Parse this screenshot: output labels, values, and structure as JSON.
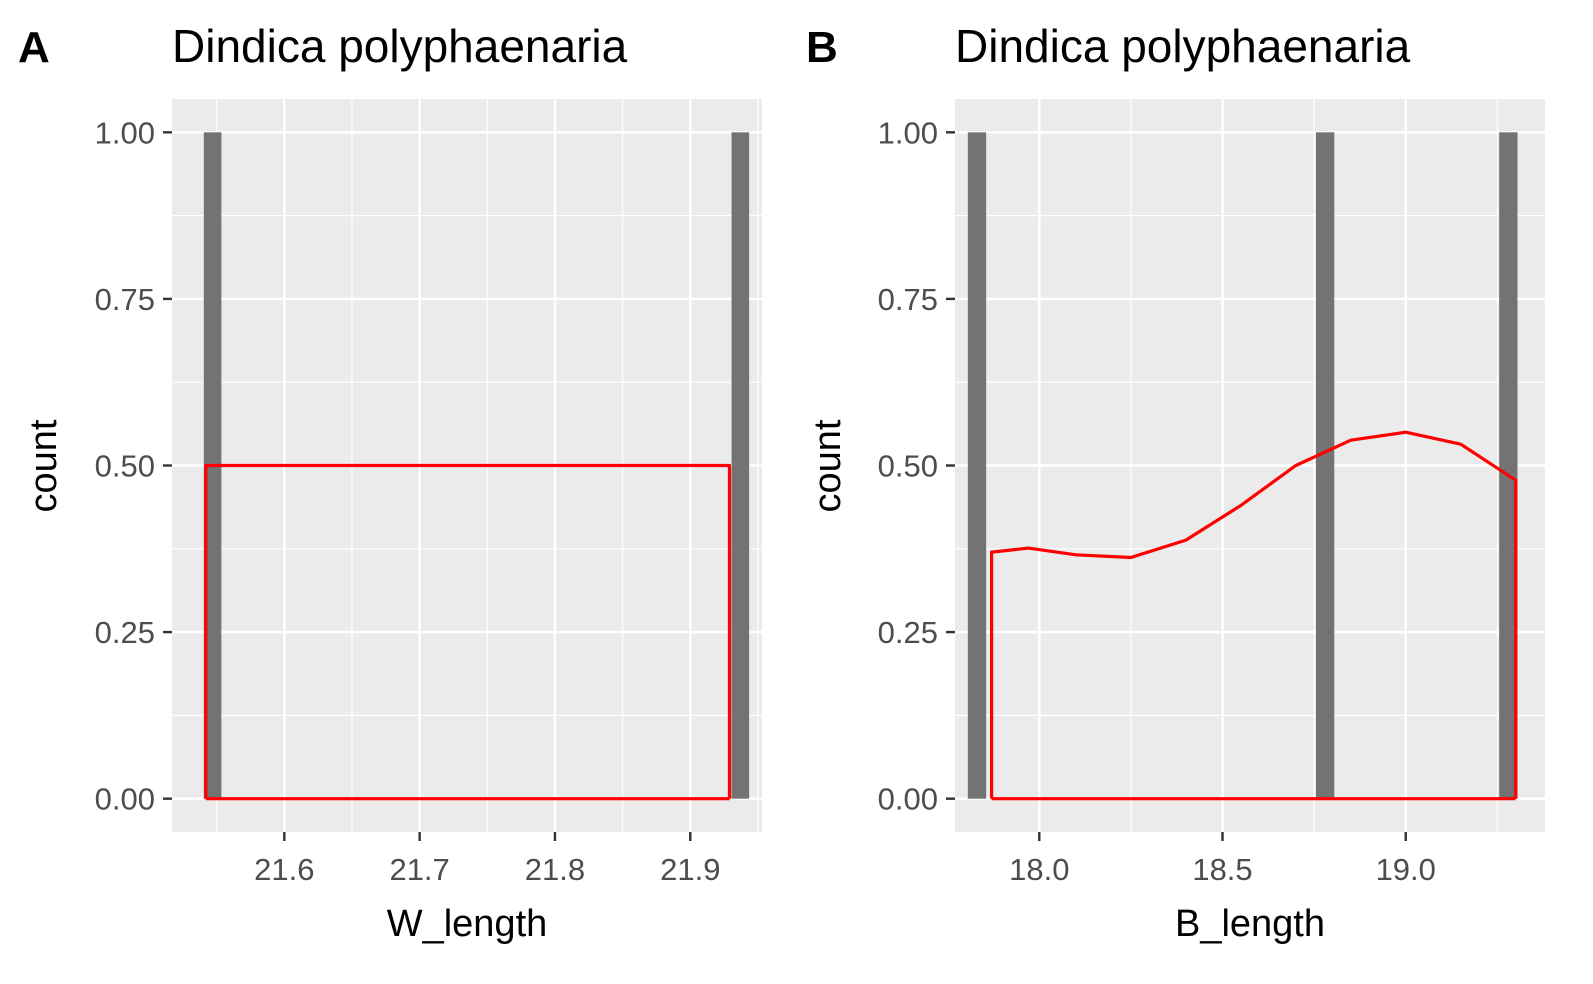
{
  "colors": {
    "panel_bg": "#ebebeb",
    "grid": "#ffffff",
    "bar": "#737373",
    "density": "#ff0000",
    "tick": "#333333",
    "tick_text": "#4d4d4d"
  },
  "chart_data": [
    {
      "panel": "A",
      "type": "bar",
      "title": "Dindica polyphaenaria",
      "xlabel": "W_length",
      "ylabel": "count",
      "xlim": [
        21.517,
        21.953
      ],
      "ylim": [
        -0.05,
        1.05
      ],
      "x_ticks": [
        21.6,
        21.7,
        21.8,
        21.9
      ],
      "x_tick_labels": [
        "21.6",
        "21.7",
        "21.8",
        "21.9"
      ],
      "y_ticks": [
        0,
        0.25,
        0.5,
        0.75,
        1.0
      ],
      "y_tick_labels": [
        "0.00",
        "0.25",
        "0.50",
        "0.75",
        "1.00"
      ],
      "grid": true,
      "bar_width": 0.013,
      "bars": [
        {
          "x": 21.547,
          "count": 1
        },
        {
          "x": 21.937,
          "count": 1
        }
      ],
      "density_overlay": {
        "x": [
          21.542,
          21.542,
          21.929,
          21.929
        ],
        "y": [
          0,
          0.5,
          0.5,
          0
        ]
      }
    },
    {
      "panel": "B",
      "type": "bar",
      "title": "Dindica polyphaenaria",
      "xlabel": "B_length",
      "ylabel": "count",
      "xlim": [
        17.77,
        19.38
      ],
      "ylim": [
        -0.05,
        1.05
      ],
      "x_ticks": [
        18.0,
        18.5,
        19.0
      ],
      "x_tick_labels": [
        "18.0",
        "18.5",
        "19.0"
      ],
      "y_ticks": [
        0,
        0.25,
        0.5,
        0.75,
        1.0
      ],
      "y_tick_labels": [
        "0.00",
        "0.25",
        "0.50",
        "0.75",
        "1.00"
      ],
      "grid": true,
      "bar_width": 0.05,
      "bars": [
        {
          "x": 17.83,
          "count": 1
        },
        {
          "x": 18.78,
          "count": 1
        },
        {
          "x": 19.28,
          "count": 1
        }
      ],
      "density_overlay": {
        "x": [
          17.87,
          17.87,
          17.97,
          18.1,
          18.25,
          18.4,
          18.55,
          18.7,
          18.85,
          19.0,
          19.15,
          19.3,
          19.3
        ],
        "y": [
          0,
          0.37,
          0.376,
          0.366,
          0.362,
          0.388,
          0.44,
          0.5,
          0.538,
          0.55,
          0.532,
          0.478,
          0
        ]
      }
    }
  ]
}
